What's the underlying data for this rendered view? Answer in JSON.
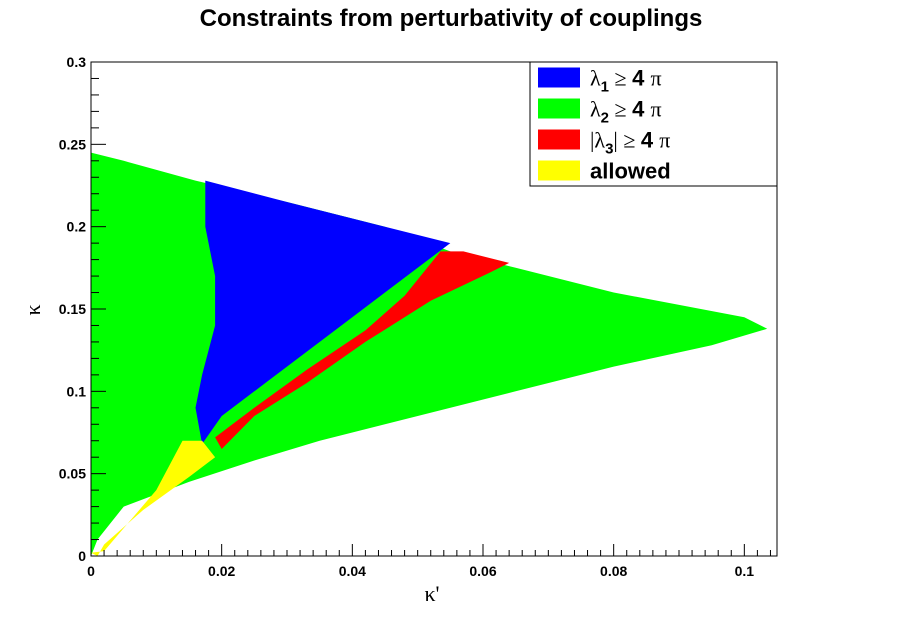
{
  "chart_data": {
    "type": "heatmap",
    "title": "Constraints from perturbativity of couplings",
    "xlabel": "κ'",
    "ylabel": "κ",
    "xlim": [
      0,
      0.105
    ],
    "ylim": [
      0,
      0.3
    ],
    "x_ticks": [
      {
        "value": 0,
        "label": "0"
      },
      {
        "value": 0.02,
        "label": "0.02"
      },
      {
        "value": 0.04,
        "label": "0.04"
      },
      {
        "value": 0.06,
        "label": "0.06"
      },
      {
        "value": 0.08,
        "label": "0.08"
      },
      {
        "value": 0.1,
        "label": "0.1"
      }
    ],
    "y_ticks": [
      {
        "value": 0,
        "label": "0"
      },
      {
        "value": 0.05,
        "label": "0.05"
      },
      {
        "value": 0.1,
        "label": "0.1"
      },
      {
        "value": 0.15,
        "label": "0.15"
      },
      {
        "value": 0.2,
        "label": "0.2"
      },
      {
        "value": 0.25,
        "label": "0.25"
      },
      {
        "value": 0.3,
        "label": "0.3"
      }
    ],
    "grid": false,
    "legend_position": "top-right",
    "legend": [
      {
        "key": "lambda1",
        "color": "#0000ff",
        "prefix": "",
        "symbol": "λ",
        "sub": "1",
        "suffix": "",
        "ge": "≥",
        "num": "4",
        "pi": "π"
      },
      {
        "key": "lambda2",
        "color": "#00ff00",
        "prefix": "",
        "symbol": "λ",
        "sub": "2",
        "suffix": "",
        "ge": "≥",
        "num": "4",
        "pi": "π"
      },
      {
        "key": "lambda3",
        "color": "#ff0000",
        "prefix": "|",
        "symbol": "λ",
        "sub": "3",
        "suffix": "|",
        "ge": "≥",
        "num": "4",
        "pi": "π"
      },
      {
        "key": "allowed",
        "color": "#ffff00",
        "text": "allowed"
      }
    ],
    "regions": [
      {
        "key": "lambda2",
        "color": "#00ff00",
        "vertices": [
          [
            0,
            0
          ],
          [
            0,
            0.245
          ],
          [
            0.005,
            0.24
          ],
          [
            0.016,
            0.228
          ],
          [
            0.03,
            0.215
          ],
          [
            0.045,
            0.2
          ],
          [
            0.055,
            0.185
          ],
          [
            0.065,
            0.175
          ],
          [
            0.08,
            0.16
          ],
          [
            0.1,
            0.145
          ],
          [
            0.1035,
            0.138
          ],
          [
            0.095,
            0.128
          ],
          [
            0.08,
            0.115
          ],
          [
            0.065,
            0.1
          ],
          [
            0.05,
            0.085
          ],
          [
            0.035,
            0.07
          ],
          [
            0.025,
            0.058
          ],
          [
            0.015,
            0.045
          ],
          [
            0.005,
            0.03
          ],
          [
            0.001,
            0.01
          ]
        ]
      },
      {
        "key": "lambda1",
        "color": "#0000ff",
        "vertices": [
          [
            0.0175,
            0.228
          ],
          [
            0.03,
            0.215
          ],
          [
            0.045,
            0.2
          ],
          [
            0.055,
            0.19
          ],
          [
            0.05,
            0.175
          ],
          [
            0.04,
            0.145
          ],
          [
            0.03,
            0.115
          ],
          [
            0.02,
            0.085
          ],
          [
            0.017,
            0.068
          ],
          [
            0.016,
            0.09
          ],
          [
            0.017,
            0.11
          ],
          [
            0.019,
            0.14
          ],
          [
            0.019,
            0.17
          ],
          [
            0.0175,
            0.2
          ]
        ]
      },
      {
        "key": "lambda3",
        "color": "#ff0000",
        "vertices": [
          [
            0.0535,
            0.185
          ],
          [
            0.057,
            0.185
          ],
          [
            0.064,
            0.178
          ],
          [
            0.061,
            0.172
          ],
          [
            0.052,
            0.155
          ],
          [
            0.042,
            0.13
          ],
          [
            0.033,
            0.105
          ],
          [
            0.025,
            0.085
          ],
          [
            0.02,
            0.065
          ],
          [
            0.019,
            0.072
          ],
          [
            0.025,
            0.09
          ],
          [
            0.033,
            0.113
          ],
          [
            0.042,
            0.137
          ],
          [
            0.048,
            0.158
          ]
        ]
      },
      {
        "key": "allowed",
        "color": "#ffff00",
        "vertices": [
          [
            0,
            0.002
          ],
          [
            0.002,
            0.003
          ],
          [
            0.01,
            0.04
          ],
          [
            0.014,
            0.07
          ],
          [
            0.017,
            0.07
          ],
          [
            0.019,
            0.06
          ],
          [
            0.015,
            0.048
          ],
          [
            0.008,
            0.028
          ],
          [
            0.002,
            0.007
          ],
          [
            0.001,
            0.0
          ]
        ]
      }
    ]
  }
}
